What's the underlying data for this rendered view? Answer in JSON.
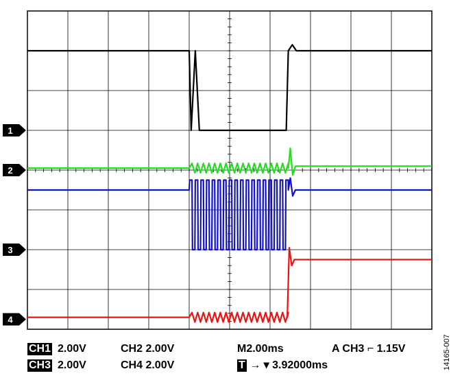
{
  "chart_data": {
    "type": "line",
    "title": "",
    "xlabel": "",
    "ylabel": "",
    "grid": true,
    "timebase": "M2.00ms",
    "x_unit": "ms",
    "xlim": [
      0,
      20
    ],
    "ylim": [
      -4,
      4
    ],
    "vertical_divisions": 8,
    "horizontal_divisions": 10,
    "series": [
      {
        "channel": "1",
        "color": "#000000",
        "ground_div": 1.0,
        "x": [
          0,
          8.0,
          8.1,
          8.3,
          8.5,
          8.6,
          12.8,
          12.9,
          13.1,
          13.3,
          20
        ],
        "y_div": [
          2.0,
          2.0,
          0.0,
          2.0,
          0.0,
          0.0,
          0.0,
          2.0,
          2.15,
          2.0,
          2.0
        ]
      },
      {
        "channel": "2",
        "color": "#22dd22",
        "ground_div": 0.0,
        "baseline_div": 0.05,
        "oscillation": {
          "from": 8.0,
          "to": 12.8,
          "period": 0.28,
          "amplitude_div": 0.12
        },
        "transition": {
          "at": 13.0,
          "to_div": 0.1,
          "overshoot_div": 0.45
        }
      },
      {
        "channel": "3",
        "color": "#1111cc",
        "ground_div": -2.0,
        "baseline_div": 1.5,
        "oscillation": {
          "from": 8.0,
          "to": 12.8,
          "period": 0.28,
          "amplitude_div": 1.5,
          "center_div": 0.0,
          "low_div": 0.0,
          "high_div": 1.75
        },
        "transition": {
          "at": 13.0,
          "to_div": 1.5,
          "overshoot_div": 0.3
        }
      },
      {
        "channel": "4",
        "color": "#ee1111",
        "ground_div": -3.75,
        "baseline_div": 0.05,
        "oscillation": {
          "from": 8.0,
          "to": 12.8,
          "period": 0.28,
          "amplitude_div": 0.12
        },
        "transition": {
          "at": 12.95,
          "to_div": 1.5,
          "overshoot_div": 0.3
        }
      }
    ],
    "markers": [
      "1",
      "2",
      "3",
      "4"
    ]
  },
  "status": {
    "ch1": {
      "name": "CH1",
      "volts": "2.00V"
    },
    "ch2": "CH2 2.00V",
    "ch3": {
      "name": "CH3",
      "volts": "2.00V"
    },
    "ch4": "CH4 2.00V",
    "timebase": "M2.00ms",
    "trigger": "A  CH3 ⌐ 1.15V",
    "trigger_pos_icon": "T",
    "trigger_pos": "→ ▾ 3.92000ms"
  },
  "figure_id": "14165-007"
}
